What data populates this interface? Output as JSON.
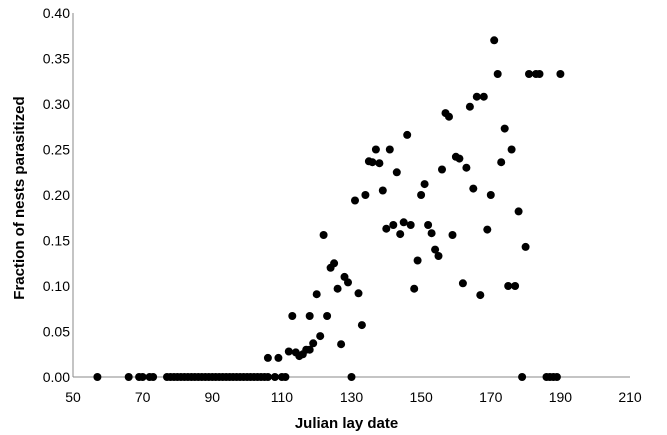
{
  "chart_data": {
    "type": "scatter",
    "title": "",
    "xlabel": "Julian lay date",
    "ylabel": "Fraction of nests parasitized",
    "xlim": [
      50,
      210
    ],
    "ylim": [
      0,
      0.4
    ],
    "xticks": [
      "50",
      "70",
      "90",
      "110",
      "130",
      "150",
      "170",
      "190",
      "210"
    ],
    "yticks": [
      "0.00",
      "0.05",
      "0.10",
      "0.15",
      "0.20",
      "0.25",
      "0.30",
      "0.35",
      "0.40"
    ],
    "grid": false,
    "legend": "none",
    "marker_color": "#000000",
    "points": [
      [
        57,
        0
      ],
      [
        66,
        0
      ],
      [
        69,
        0
      ],
      [
        70,
        0
      ],
      [
        72,
        0
      ],
      [
        73,
        0
      ],
      [
        77,
        0
      ],
      [
        78,
        0
      ],
      [
        79,
        0
      ],
      [
        80,
        0
      ],
      [
        81,
        0
      ],
      [
        82,
        0
      ],
      [
        83,
        0
      ],
      [
        84,
        0
      ],
      [
        85,
        0
      ],
      [
        86,
        0
      ],
      [
        87,
        0
      ],
      [
        88,
        0
      ],
      [
        89,
        0
      ],
      [
        90,
        0
      ],
      [
        91,
        0
      ],
      [
        92,
        0
      ],
      [
        93,
        0
      ],
      [
        94,
        0
      ],
      [
        95,
        0
      ],
      [
        96,
        0
      ],
      [
        97,
        0
      ],
      [
        98,
        0
      ],
      [
        99,
        0
      ],
      [
        100,
        0
      ],
      [
        101,
        0
      ],
      [
        102,
        0
      ],
      [
        103,
        0
      ],
      [
        104,
        0
      ],
      [
        105,
        0
      ],
      [
        106,
        0
      ],
      [
        108,
        0
      ],
      [
        110,
        0
      ],
      [
        111,
        0
      ],
      [
        130,
        0
      ],
      [
        179,
        0
      ],
      [
        186,
        0
      ],
      [
        187,
        0
      ],
      [
        188,
        0
      ],
      [
        189,
        0
      ],
      [
        106,
        0.021
      ],
      [
        109,
        0.021
      ],
      [
        112,
        0.028
      ],
      [
        114,
        0.027
      ],
      [
        115,
        0.023
      ],
      [
        116,
        0.025
      ],
      [
        117,
        0.03
      ],
      [
        118,
        0.03
      ],
      [
        118,
        0.067
      ],
      [
        113,
        0.067
      ],
      [
        119,
        0.037
      ],
      [
        120,
        0.091
      ],
      [
        121,
        0.045
      ],
      [
        122,
        0.156
      ],
      [
        123,
        0.067
      ],
      [
        124,
        0.12
      ],
      [
        125,
        0.125
      ],
      [
        126,
        0.097
      ],
      [
        127,
        0.036
      ],
      [
        128,
        0.11
      ],
      [
        129,
        0.104
      ],
      [
        131,
        0.194
      ],
      [
        132,
        0.092
      ],
      [
        133,
        0.057
      ],
      [
        134,
        0.2
      ],
      [
        135,
        0.237
      ],
      [
        136,
        0.236
      ],
      [
        137,
        0.25
      ],
      [
        138,
        0.235
      ],
      [
        139,
        0.205
      ],
      [
        140,
        0.163
      ],
      [
        141,
        0.25
      ],
      [
        142,
        0.167
      ],
      [
        143,
        0.225
      ],
      [
        144,
        0.157
      ],
      [
        145,
        0.17
      ],
      [
        146,
        0.266
      ],
      [
        147,
        0.167
      ],
      [
        148,
        0.097
      ],
      [
        149,
        0.128
      ],
      [
        150,
        0.2
      ],
      [
        151,
        0.212
      ],
      [
        152,
        0.167
      ],
      [
        153,
        0.158
      ],
      [
        154,
        0.14
      ],
      [
        155,
        0.133
      ],
      [
        156,
        0.228
      ],
      [
        157,
        0.29
      ],
      [
        158,
        0.286
      ],
      [
        159,
        0.156
      ],
      [
        160,
        0.242
      ],
      [
        161,
        0.24
      ],
      [
        162,
        0.103
      ],
      [
        163,
        0.23
      ],
      [
        164,
        0.297
      ],
      [
        165,
        0.207
      ],
      [
        166,
        0.308
      ],
      [
        167,
        0.09
      ],
      [
        168,
        0.308
      ],
      [
        169,
        0.162
      ],
      [
        170,
        0.2
      ],
      [
        171,
        0.37
      ],
      [
        172,
        0.333
      ],
      [
        173,
        0.236
      ],
      [
        174,
        0.273
      ],
      [
        175,
        0.1
      ],
      [
        176,
        0.25
      ],
      [
        177,
        0.1
      ],
      [
        178,
        0.182
      ],
      [
        180,
        0.143
      ],
      [
        181,
        0.333
      ],
      [
        183,
        0.333
      ],
      [
        184,
        0.333
      ],
      [
        190,
        0.333
      ]
    ]
  }
}
